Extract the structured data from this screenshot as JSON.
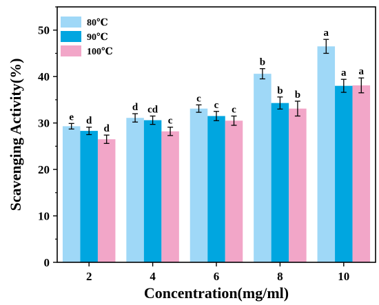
{
  "chart_data": {
    "type": "bar",
    "xlabel": "Concentration(mg/ml)",
    "ylabel": "Scavenging Activity(%)",
    "categories": [
      "2",
      "4",
      "6",
      "8",
      "10"
    ],
    "ylim": [
      0,
      55
    ],
    "yticks": [
      "0",
      "10",
      "20",
      "30",
      "40",
      "50"
    ],
    "grid": false,
    "legend_position": "top-left",
    "series": [
      {
        "name": "80℃",
        "color": "#9fd8f7",
        "values": [
          29.3,
          31.1,
          33.1,
          40.6,
          46.5
        ],
        "errors": [
          0.6,
          0.9,
          0.8,
          1.1,
          1.5
        ],
        "labels": [
          "e",
          "d",
          "c",
          "b",
          "a"
        ]
      },
      {
        "name": "90℃",
        "color": "#00a6e0",
        "values": [
          28.3,
          30.6,
          31.5,
          34.3,
          38.0
        ],
        "errors": [
          0.8,
          0.9,
          1.0,
          1.3,
          1.4
        ],
        "labels": [
          "d",
          "cd",
          "c",
          "b",
          "a"
        ]
      },
      {
        "name": "100℃",
        "color": "#f2a6c8",
        "values": [
          26.5,
          28.2,
          30.5,
          33.1,
          38.1
        ],
        "errors": [
          0.9,
          0.9,
          1.0,
          1.6,
          1.6
        ],
        "labels": [
          "d",
          "c",
          "c",
          "b",
          "a"
        ]
      }
    ]
  }
}
